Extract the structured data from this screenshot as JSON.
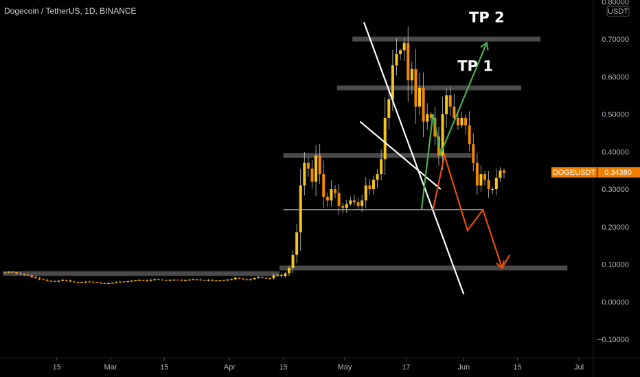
{
  "header": {
    "title": "Dogecoin / TetherUS, 1D, BINANCE"
  },
  "price_axis": {
    "unit": "USDT"
  },
  "last_price": {
    "symbol": "DOGEUSDT",
    "value": "0.34380"
  },
  "colors": {
    "background": "#000000",
    "candle_up": "#f5c518",
    "candle_down": "#f08a00",
    "level_band": "#4a4a4a",
    "channel_line": "#ffffff",
    "bull_path": "#4caf50",
    "bear_path": "#e65100",
    "price_tag": "#f07f00"
  },
  "annotations": {
    "tp1": "TP 1",
    "tp2": "TP 2"
  },
  "chart_data": {
    "type": "candlestick",
    "title": "Dogecoin / TetherUS, 1D, BINANCE",
    "ylabel": "USDT",
    "ylim": [
      -0.155,
      0.81
    ],
    "yticks": [
      "0.80000",
      "0.70000",
      "0.60000",
      "0.50000",
      "0.40000",
      "0.30000",
      "0.20000",
      "0.10000",
      "0.00000",
      "−0.10000"
    ],
    "ytick_values": [
      0.8,
      0.7,
      0.6,
      0.5,
      0.4,
      0.3,
      0.2,
      0.1,
      0.0,
      -0.1
    ],
    "xticks": [
      {
        "label": "15",
        "date": "2021-02-15"
      },
      {
        "label": "Mar",
        "date": "2021-03-01"
      },
      {
        "label": "15",
        "date": "2021-03-15"
      },
      {
        "label": "Apr",
        "date": "2021-04-01"
      },
      {
        "label": "15",
        "date": "2021-04-15"
      },
      {
        "label": "May",
        "date": "2021-05-01"
      },
      {
        "label": "17",
        "date": "2021-05-17"
      },
      {
        "label": "Jun",
        "date": "2021-06-01"
      },
      {
        "label": "15",
        "date": "2021-06-15"
      },
      {
        "label": "Jul",
        "date": "2021-07-01"
      }
    ],
    "x_start_date": "2021-02-01",
    "x_end_date": "2021-07-01",
    "close_series": [
      0.078,
      0.08,
      0.079,
      0.076,
      0.074,
      0.072,
      0.07,
      0.066,
      0.063,
      0.06,
      0.058,
      0.056,
      0.055,
      0.054,
      0.056,
      0.058,
      0.057,
      0.054,
      0.052,
      0.051,
      0.052,
      0.054,
      0.053,
      0.052,
      0.051,
      0.05,
      0.049,
      0.05,
      0.051,
      0.052,
      0.053,
      0.054,
      0.055,
      0.056,
      0.057,
      0.058,
      0.057,
      0.056,
      0.058,
      0.06,
      0.059,
      0.058,
      0.057,
      0.058,
      0.059,
      0.058,
      0.057,
      0.058,
      0.059,
      0.06,
      0.059,
      0.058,
      0.057,
      0.058,
      0.057,
      0.056,
      0.057,
      0.058,
      0.059,
      0.06,
      0.064,
      0.062,
      0.06,
      0.058,
      0.06,
      0.063,
      0.066,
      0.064,
      0.062,
      0.063,
      0.07,
      0.072,
      0.068,
      0.076,
      0.09,
      0.125,
      0.185,
      0.31,
      0.37,
      0.355,
      0.32,
      0.39,
      0.34,
      0.28,
      0.27,
      0.3,
      0.29,
      0.255,
      0.25,
      0.26,
      0.27,
      0.265,
      0.255,
      0.27,
      0.31,
      0.3,
      0.325,
      0.34,
      0.38,
      0.49,
      0.54,
      0.63,
      0.66,
      0.67,
      0.69,
      0.59,
      0.62,
      0.52,
      0.57,
      0.48,
      0.5,
      0.49,
      0.44,
      0.39,
      0.5,
      0.55,
      0.52,
      0.49,
      0.47,
      0.49,
      0.47,
      0.42,
      0.37,
      0.31,
      0.34,
      0.325,
      0.3,
      0.3,
      0.33,
      0.35,
      0.3438
    ],
    "price_levels": [
      {
        "name": "level-0.70",
        "y": 0.7,
        "from_date": "2021-05-03",
        "to_date": "2021-06-21"
      },
      {
        "name": "level-0.57",
        "y": 0.57,
        "from_date": "2021-04-29",
        "to_date": "2021-06-16"
      },
      {
        "name": "level-0.39",
        "y": 0.39,
        "from_date": "2021-04-15",
        "to_date": "2021-06-03"
      },
      {
        "name": "level-0.245",
        "y": 0.245,
        "from_date": "2021-04-15",
        "to_date": "2021-06-06"
      },
      {
        "name": "level-0.09",
        "y": 0.09,
        "from_date": "2021-04-14",
        "to_date": "2021-06-28"
      },
      {
        "name": "level-0.075",
        "y": 0.075,
        "from_date": "2021-02-01",
        "to_date": "2021-04-14"
      }
    ],
    "channel": [
      {
        "from": [
          "2021-05-06",
          0.745
        ],
        "to": [
          "2021-06-01",
          0.02
        ]
      },
      {
        "from": [
          "2021-05-05",
          0.48
        ],
        "to": [
          "2021-05-26",
          0.3
        ]
      }
    ],
    "projections": [
      {
        "name": "bull-path",
        "points": [
          [
            "2021-05-21",
            0.245
          ],
          [
            "2021-05-24",
            0.5
          ],
          [
            "2021-05-26",
            0.395
          ],
          [
            "2021-06-07",
            0.69
          ]
        ],
        "label": "TP 2"
      },
      {
        "name": "bear-path",
        "points": [
          [
            "2021-05-24",
            0.245
          ],
          [
            "2021-05-27",
            0.39
          ],
          [
            "2021-06-02",
            0.19
          ],
          [
            "2021-06-06",
            0.245
          ],
          [
            "2021-06-11",
            0.09
          ],
          [
            "2021-06-13",
            0.125
          ]
        ]
      }
    ],
    "text_annotations": [
      {
        "text": "TP 1",
        "date": "2021-06-04",
        "y": 0.615
      },
      {
        "text": "TP 2",
        "date": "2021-06-07",
        "y": 0.745
      }
    ],
    "grid": false,
    "legend": "none"
  }
}
